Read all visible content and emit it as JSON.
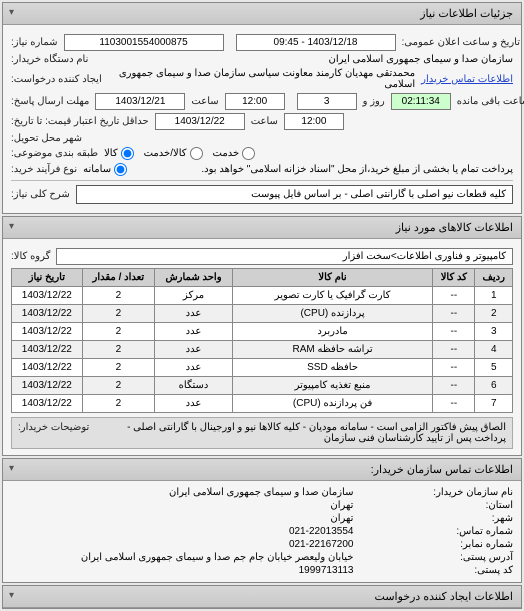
{
  "panels": {
    "details_title": "جزئیات اطلاعات نیاز"
  },
  "header": {
    "need_number_label": "شماره نیاز:",
    "need_number": "1103001554000875",
    "datetime_label": "تاریخ و ساعت اعلان عمومی:",
    "datetime": "1403/12/18 - 09:45",
    "device_name_label": "نام دستگاه خریدار:",
    "device_name": "سازمان صدا و سیمای جمهوری اسلامی ایران",
    "requester_label": "ایجاد کننده درخواست:",
    "requester": "محمدتقی مهدیان کارمند معاونت سیاسی سازمان صدا و سیمای جمهوری اسلامی",
    "contact_link": "اطلاعات تماس خریدار",
    "deadline_label": "مهلت ارسال پاسخ:",
    "deadline_date": "1403/12/21",
    "time_label": "ساعت",
    "deadline_time": "12:00",
    "remain_days": "3",
    "days_label": "روز و",
    "remain_time": "02:11:34",
    "remain_label": "ساعت باقی مانده",
    "valid_label": "حداقل تاریخ اعتبار قیمت: تا تاریخ:",
    "valid_date": "1403/12/22",
    "valid_time": "12:00",
    "delivery_city_label": "شهر محل تحویل:",
    "delivery_city": "",
    "subject_type_label": "طبقه بندی موضوعی:",
    "radio_kala": "کالا",
    "radio_kala_service": "کالا/خدمت",
    "radio_service": "خدمت",
    "purchase_type_label": "نوع فرآیند خرید:",
    "purchase_radio_single": "سامانه",
    "purchase_note": "پرداخت تمام یا بخشی از مبلغ خرید،از محل \"اسناد خزانه اسلامی\" خواهد بود.",
    "need_desc_label": "شرح کلی نیاز:",
    "need_desc": "کلیه قطعات نیو اصلی با گارانتی اصلی - بر اساس فایل پیوست"
  },
  "goods": {
    "section_title": "اطلاعات کالاهای مورد نیاز",
    "group_label": "گروه کالا:",
    "group_value": "کامپیوتر و فناوری اطلاعات>سخت افزار",
    "columns": [
      "ردیف",
      "کد کالا",
      "نام کالا",
      "واحد شمارش",
      "تعداد / مقدار",
      "تاریخ نیاز"
    ],
    "rows": [
      [
        "1",
        "--",
        "کارت گرافیک یا کارت تصویر",
        "مرکز",
        "2",
        "1403/12/22"
      ],
      [
        "2",
        "--",
        "پردازنده (CPU)",
        "عدد",
        "2",
        "1403/12/22"
      ],
      [
        "3",
        "--",
        "مادربرد",
        "عدد",
        "2",
        "1403/12/22"
      ],
      [
        "4",
        "--",
        "تراشه حافظه RAM",
        "عدد",
        "2",
        "1403/12/22"
      ],
      [
        "5",
        "--",
        "حافظه SSD",
        "عدد",
        "2",
        "1403/12/22"
      ],
      [
        "6",
        "--",
        "منبع تغذیه کامپیوتر",
        "دستگاه",
        "2",
        "1403/12/22"
      ],
      [
        "7",
        "--",
        "فن پردازنده (CPU)",
        "عدد",
        "2",
        "1403/12/22"
      ]
    ],
    "desc_label": "توضیحات خریدار:",
    "desc_text": "الصاق پیش فاکتور الزامی است - سامانه مودیان - کلیه کالاها نیو و اورجینال با گارانتی اصلی - پرداخت پس از تایید کارشناسان فنی سازمان"
  },
  "contact": {
    "section_title": "اطلاعات تماس سازمان خریدار:",
    "org_label": "نام سازمان خریدار:",
    "org": "سازمان صدا و سیمای جمهوری اسلامی ایران",
    "province_label": "استان:",
    "province": "تهران",
    "city_label": "شهر:",
    "city": "تهران",
    "phone_label": "شماره تماس:",
    "phone": "021-22013554",
    "fax_label": "شماره نمابر:",
    "fax": "021-22167200",
    "address_label": "آدرس پستی:",
    "address": "خیابان ولیعصر خیابان جام جم صدا و سیمای جمهوری اسلامی ایران",
    "postal_label": "کد پستی:",
    "postal": "1999713113"
  },
  "creator": {
    "section_title": "اطلاعات ایجاد کننده درخواست"
  },
  "colors": {
    "panel_bg": "#f5f5f5",
    "header_grad_top": "#d8d8d8",
    "header_grad_bot": "#c8c8c8",
    "border": "#888888",
    "link": "#2244cc",
    "time_box": "#ccffcc"
  }
}
